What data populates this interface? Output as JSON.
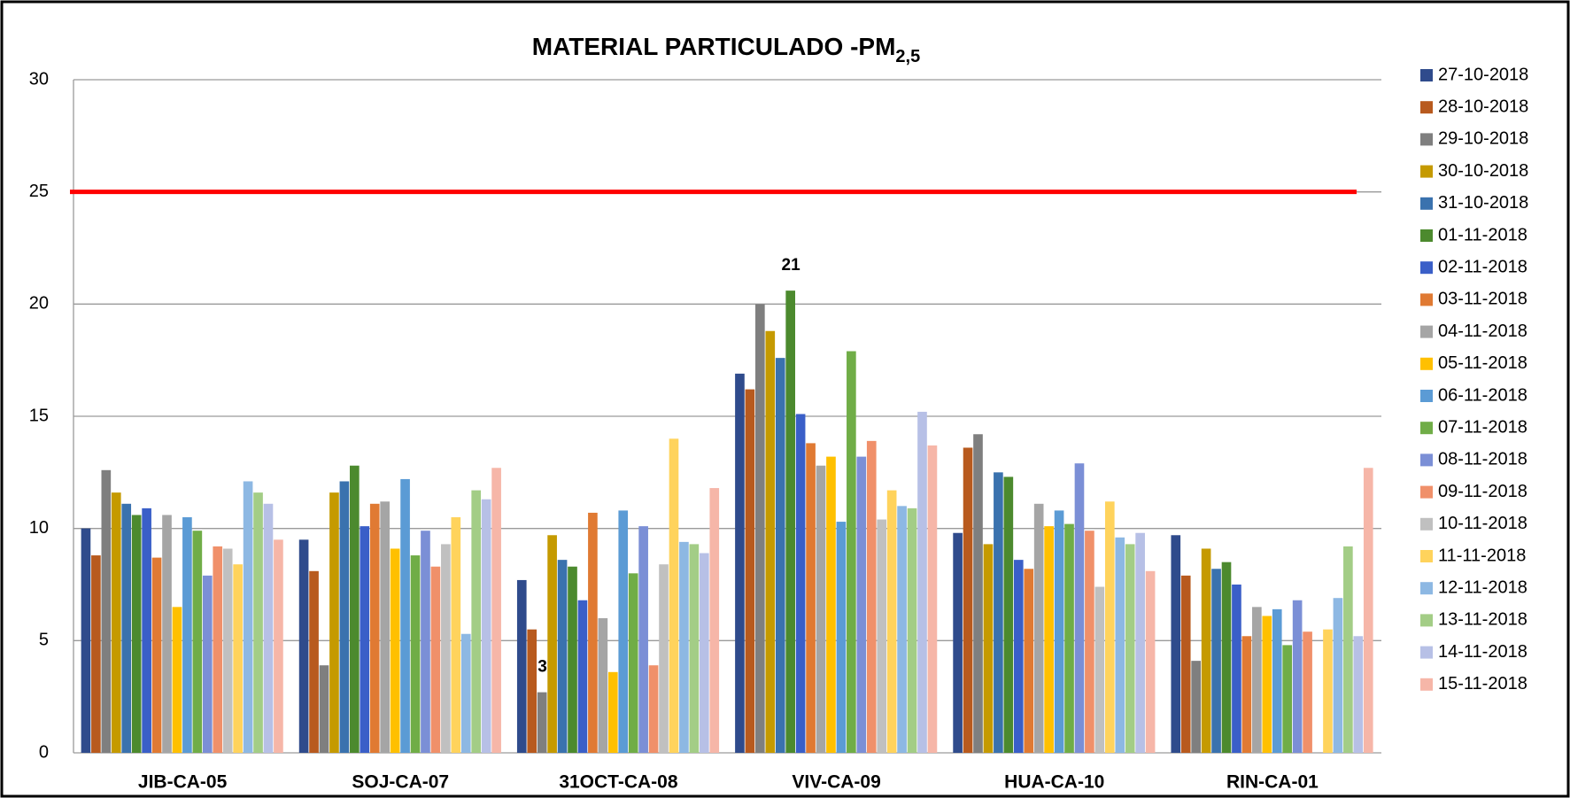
{
  "chart_data": {
    "type": "bar",
    "title": "MATERIAL PARTICULADO -PM",
    "title_subscript": "2,5",
    "categories": [
      "JIB-CA-05",
      "SOJ-CA-07",
      "31OCT-CA-08",
      "VIV-CA-09",
      "HUA-CA-10",
      "RIN-CA-01"
    ],
    "series": [
      {
        "name": "27-10-2018",
        "color": "#2f4b8c",
        "values": [
          10.0,
          9.5,
          7.7,
          16.9,
          9.8,
          9.7
        ]
      },
      {
        "name": "28-10-2018",
        "color": "#b85a1e",
        "values": [
          8.8,
          8.1,
          5.5,
          16.2,
          13.6,
          7.9
        ]
      },
      {
        "name": "29-10-2018",
        "color": "#7f7f7f",
        "values": [
          12.6,
          3.9,
          2.7,
          20.0,
          14.2,
          4.1
        ],
        "value_labels": [
          null,
          null,
          "3",
          null,
          null,
          null
        ]
      },
      {
        "name": "30-10-2018",
        "color": "#c59a00",
        "values": [
          11.6,
          11.6,
          9.7,
          18.8,
          9.3,
          9.1
        ]
      },
      {
        "name": "31-10-2018",
        "color": "#3a72ae",
        "values": [
          11.1,
          12.1,
          8.6,
          17.6,
          12.5,
          8.2
        ]
      },
      {
        "name": "01-11-2018",
        "color": "#4c8a2e",
        "values": [
          10.6,
          12.8,
          8.3,
          20.6,
          12.3,
          8.5
        ],
        "value_labels": [
          null,
          null,
          null,
          "21",
          null,
          null
        ]
      },
      {
        "name": "02-11-2018",
        "color": "#3a5fc8",
        "values": [
          10.9,
          10.1,
          6.8,
          15.1,
          8.6,
          7.5
        ]
      },
      {
        "name": "03-11-2018",
        "color": "#e07a33",
        "values": [
          8.7,
          11.1,
          10.7,
          13.8,
          8.2,
          5.2
        ]
      },
      {
        "name": "04-11-2018",
        "color": "#a5a5a5",
        "values": [
          10.6,
          11.2,
          6.0,
          12.8,
          11.1,
          6.5
        ]
      },
      {
        "name": "05-11-2018",
        "color": "#ffc000",
        "values": [
          6.5,
          9.1,
          3.6,
          13.2,
          10.1,
          6.1
        ]
      },
      {
        "name": "06-11-2018",
        "color": "#5b9bd5",
        "values": [
          10.5,
          12.2,
          10.8,
          10.3,
          10.8,
          6.4
        ]
      },
      {
        "name": "07-11-2018",
        "color": "#70ad47",
        "values": [
          9.9,
          8.8,
          8.0,
          17.9,
          10.2,
          4.8
        ]
      },
      {
        "name": "08-11-2018",
        "color": "#7b8fd6",
        "values": [
          7.9,
          9.9,
          10.1,
          13.2,
          12.9,
          6.8
        ]
      },
      {
        "name": "09-11-2018",
        "color": "#f0906a",
        "values": [
          9.2,
          8.3,
          3.9,
          13.9,
          9.9,
          5.4
        ]
      },
      {
        "name": "10-11-2018",
        "color": "#c0c0c0",
        "values": [
          9.1,
          9.3,
          8.4,
          10.4,
          7.4,
          null
        ]
      },
      {
        "name": "11-11-2018",
        "color": "#ffd35c",
        "values": [
          8.4,
          10.5,
          14.0,
          11.7,
          11.2,
          5.5
        ]
      },
      {
        "name": "12-11-2018",
        "color": "#8db8e3",
        "values": [
          12.1,
          5.3,
          9.4,
          11.0,
          9.6,
          6.9
        ]
      },
      {
        "name": "13-11-2018",
        "color": "#a3cd86",
        "values": [
          11.6,
          11.7,
          9.3,
          10.9,
          9.3,
          9.2
        ]
      },
      {
        "name": "14-11-2018",
        "color": "#b7c0e6",
        "values": [
          11.1,
          11.3,
          8.9,
          15.2,
          9.8,
          5.2
        ]
      },
      {
        "name": "15-11-2018",
        "color": "#f6b6a8",
        "values": [
          9.5,
          12.7,
          11.8,
          13.7,
          8.1,
          12.7
        ]
      }
    ],
    "ylim": [
      0,
      30
    ],
    "yticks": [
      0,
      5,
      10,
      15,
      20,
      25,
      30
    ],
    "grid": true,
    "reference_line": {
      "value": 25,
      "color": "#ff0000"
    },
    "legend": "right"
  }
}
